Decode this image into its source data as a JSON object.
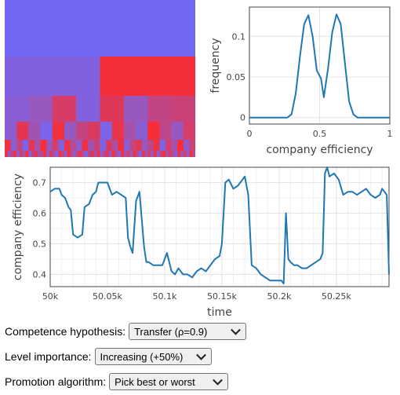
{
  "hierarchy": {
    "colors": {
      "low": "#6b6bff",
      "high": "#ff2a2a"
    },
    "levels": [
      [
        0.05
      ],
      [
        0.15,
        0.92
      ],
      [
        0.2,
        0.3,
        0.72,
        0.15,
        0.78,
        0.3,
        0.58,
        0.64
      ],
      [
        0.22,
        0.8,
        0.35,
        0.1,
        0.9,
        0.28,
        0.6,
        0.75,
        0.12,
        0.85,
        0.4,
        0.2,
        0.95,
        0.55,
        0.3,
        0.7
      ],
      [
        0.9,
        0.2,
        0.6,
        0.1,
        0.8,
        0.4,
        0.95,
        0.3,
        0.7,
        0.15,
        0.85,
        0.5,
        0.25,
        0.9,
        0.35,
        0.65,
        0.1,
        0.75,
        0.45,
        0.92,
        0.2,
        0.6,
        0.8,
        0.3,
        0.55,
        0.88,
        0.12,
        0.7,
        0.4,
        0.95,
        0.25,
        0.65
      ],
      [
        0.85,
        0.3,
        0.6,
        0.9,
        0.2,
        0.7,
        0.4,
        0.95,
        0.1,
        0.65,
        0.8,
        0.35,
        0.55,
        0.9,
        0.25,
        0.75,
        0.45,
        0.15,
        0.85,
        0.6,
        0.3,
        0.92,
        0.5,
        0.2,
        0.7,
        0.88,
        0.4,
        0.1,
        0.65,
        0.8,
        0.35,
        0.95,
        0.2,
        0.6,
        0.75,
        0.3,
        0.9,
        0.5,
        0.15,
        0.85,
        0.4,
        0.7,
        0.25,
        0.92,
        0.55,
        0.1,
        0.8,
        0.45,
        0.65,
        0.3,
        0.88,
        0.2,
        0.6,
        0.95,
        0.35,
        0.75,
        0.5,
        0.15,
        0.85,
        0.4,
        0.7,
        0.25,
        0.9,
        0.55
      ]
    ]
  },
  "chart_data": [
    {
      "type": "line",
      "xlabel": "company efficiency",
      "ylabel": "frequency",
      "xlim": [
        0,
        1
      ],
      "ylim": [
        -0.008,
        0.136
      ],
      "x_ticks": [
        "0",
        "0.5",
        "1"
      ],
      "y_ticks": [
        "0",
        "0.05",
        "0.1"
      ],
      "x_tick_values": [
        0,
        0.5,
        1
      ],
      "y_tick_values": [
        0,
        0.05,
        0.1
      ],
      "grid": true,
      "color": "#1f77b4",
      "x": [
        0,
        0.05,
        0.1,
        0.15,
        0.2,
        0.25,
        0.27,
        0.3,
        0.33,
        0.36,
        0.39,
        0.42,
        0.45,
        0.48,
        0.51,
        0.53,
        0.56,
        0.59,
        0.62,
        0.65,
        0.68,
        0.71,
        0.74,
        0.77,
        0.8,
        0.85,
        0.9,
        0.95,
        1.0
      ],
      "y": [
        0,
        0,
        0,
        0,
        0,
        0,
        0,
        0.004,
        0.03,
        0.075,
        0.115,
        0.126,
        0.1,
        0.058,
        0.048,
        0.025,
        0.06,
        0.105,
        0.127,
        0.115,
        0.068,
        0.02,
        0.004,
        0,
        0,
        0,
        0,
        0,
        0
      ]
    },
    {
      "type": "line",
      "xlabel": "time",
      "ylabel": "company efficiency",
      "xlim": [
        50000,
        50296
      ],
      "ylim": [
        0.36,
        0.75
      ],
      "x_ticks": [
        "50k",
        "50.05k",
        "50.1k",
        "50.15k",
        "50.2k",
        "50.25k"
      ],
      "y_ticks": [
        "0.4",
        "0.5",
        "0.6",
        "0.7"
      ],
      "x_tick_values": [
        50000,
        50050,
        50100,
        50150,
        50200,
        50250
      ],
      "y_tick_values": [
        0.4,
        0.5,
        0.6,
        0.7
      ],
      "grid": true,
      "color": "#1f77b4",
      "x": [
        50000,
        50004,
        50008,
        50010,
        50013,
        50016,
        50018,
        50020,
        50024,
        50028,
        50030,
        50034,
        50037,
        50040,
        50042,
        50046,
        50050,
        50054,
        50058,
        50062,
        50066,
        50068,
        50070,
        50072,
        50075,
        50078,
        50082,
        50084,
        50086,
        50090,
        50094,
        50098,
        50102,
        50106,
        50109,
        50112,
        50116,
        50120,
        50124,
        50128,
        50132,
        50136,
        50140,
        50144,
        50148,
        50150,
        50153,
        50156,
        50160,
        50164,
        50168,
        50170,
        50173,
        50176,
        50180,
        50184,
        50188,
        50192,
        50196,
        50200,
        50202,
        50204,
        50206,
        50208,
        50210,
        50213,
        50216,
        50220,
        50224,
        50228,
        50232,
        50236,
        50238,
        50240,
        50242,
        50244,
        50248,
        50252,
        50256,
        50260,
        50264,
        50268,
        50272,
        50276,
        50280,
        50284,
        50288,
        50290,
        50292,
        50294,
        50296
      ],
      "y": [
        0.67,
        0.68,
        0.68,
        0.66,
        0.65,
        0.62,
        0.61,
        0.53,
        0.52,
        0.53,
        0.62,
        0.63,
        0.66,
        0.67,
        0.7,
        0.7,
        0.7,
        0.66,
        0.67,
        0.66,
        0.65,
        0.52,
        0.49,
        0.47,
        0.64,
        0.67,
        0.49,
        0.44,
        0.44,
        0.43,
        0.43,
        0.43,
        0.47,
        0.41,
        0.4,
        0.42,
        0.4,
        0.4,
        0.39,
        0.41,
        0.42,
        0.41,
        0.43,
        0.45,
        0.46,
        0.5,
        0.7,
        0.71,
        0.68,
        0.69,
        0.71,
        0.72,
        0.66,
        0.43,
        0.42,
        0.4,
        0.39,
        0.38,
        0.38,
        0.38,
        0.38,
        0.37,
        0.6,
        0.45,
        0.44,
        0.43,
        0.43,
        0.42,
        0.42,
        0.43,
        0.44,
        0.45,
        0.47,
        0.73,
        0.75,
        0.72,
        0.73,
        0.71,
        0.66,
        0.67,
        0.67,
        0.66,
        0.67,
        0.68,
        0.66,
        0.65,
        0.66,
        0.68,
        0.67,
        0.66,
        0.4
      ]
    }
  ],
  "controls": {
    "competence": {
      "label": "Competence hypothesis:",
      "value": "Transfer (ρ=0.9)"
    },
    "level_importance": {
      "label": "Level importance:",
      "value": "Increasing (+50%)"
    },
    "promotion": {
      "label": "Promotion algorithm:",
      "value": "Pick best or worst"
    }
  }
}
